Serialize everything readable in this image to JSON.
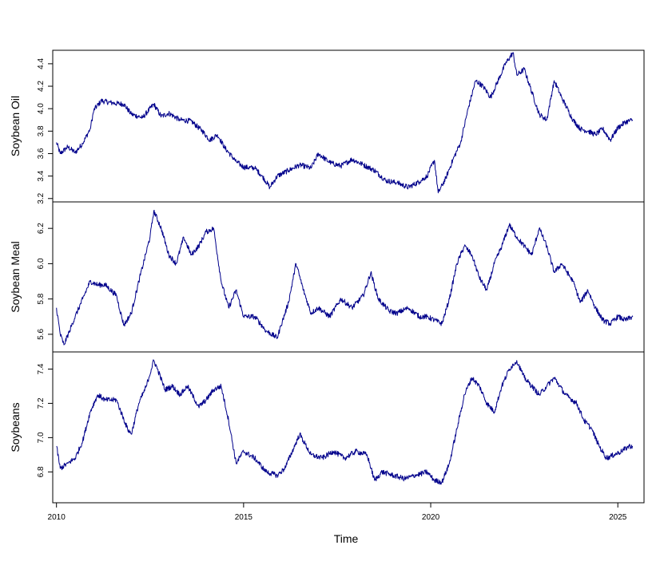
{
  "chart_data": {
    "type": "line",
    "title": "",
    "xlabel": "Time",
    "xlim": [
      2009.9,
      2025.7
    ],
    "x_ticks": [
      2010,
      2015,
      2020,
      2025
    ],
    "x_tick_labels": [
      "2010",
      "2015",
      "2020",
      "2025"
    ],
    "line_color": "#00008B",
    "grid": false,
    "legend": "none",
    "panels": [
      {
        "name": "Soybean Oil",
        "ylim": [
          3.17,
          4.52
        ],
        "y_ticks": [
          3.2,
          3.4,
          3.6,
          3.8,
          4.0,
          4.2,
          4.4
        ],
        "y_tick_labels": [
          "3.2",
          "3.4",
          "3.6",
          "3.8",
          "4.0",
          "4.2",
          "4.4"
        ],
        "x": [
          2010.0,
          2010.1,
          2010.3,
          2010.5,
          2010.7,
          2010.9,
          2011.0,
          2011.2,
          2011.5,
          2011.8,
          2012.0,
          2012.3,
          2012.6,
          2012.8,
          2013.0,
          2013.3,
          2013.6,
          2013.9,
          2014.1,
          2014.3,
          2014.5,
          2014.8,
          2015.0,
          2015.3,
          2015.5,
          2015.7,
          2015.9,
          2016.2,
          2016.5,
          2016.8,
          2017.0,
          2017.3,
          2017.6,
          2017.9,
          2018.2,
          2018.5,
          2018.8,
          2019.1,
          2019.4,
          2019.7,
          2019.9,
          2020.1,
          2020.2,
          2020.4,
          2020.6,
          2020.8,
          2021.0,
          2021.2,
          2021.4,
          2021.6,
          2021.8,
          2022.0,
          2022.2,
          2022.3,
          2022.5,
          2022.7,
          2022.9,
          2023.1,
          2023.3,
          2023.5,
          2023.8,
          2024.0,
          2024.2,
          2024.4,
          2024.6,
          2024.8,
          2025.0,
          2025.2,
          2025.4
        ],
        "y": [
          3.7,
          3.6,
          3.66,
          3.61,
          3.69,
          3.82,
          3.99,
          4.07,
          4.05,
          4.04,
          3.95,
          3.92,
          4.04,
          3.93,
          3.96,
          3.9,
          3.89,
          3.8,
          3.72,
          3.77,
          3.65,
          3.53,
          3.48,
          3.47,
          3.4,
          3.3,
          3.4,
          3.45,
          3.5,
          3.47,
          3.6,
          3.52,
          3.49,
          3.55,
          3.5,
          3.45,
          3.36,
          3.34,
          3.3,
          3.35,
          3.4,
          3.54,
          3.25,
          3.38,
          3.55,
          3.7,
          4.0,
          4.25,
          4.2,
          4.1,
          4.25,
          4.4,
          4.5,
          4.3,
          4.35,
          4.15,
          3.95,
          3.9,
          4.25,
          4.1,
          3.9,
          3.82,
          3.8,
          3.77,
          3.82,
          3.72,
          3.83,
          3.88,
          3.9
        ]
      },
      {
        "name": "Soybean Meal",
        "ylim": [
          5.5,
          6.35
        ],
        "y_ticks": [
          5.6,
          5.8,
          6.0,
          6.2
        ],
        "y_tick_labels": [
          "5.6",
          "5.8",
          "6.0",
          "6.2"
        ],
        "x": [
          2010.0,
          2010.1,
          2010.2,
          2010.35,
          2010.5,
          2010.7,
          2010.9,
          2011.1,
          2011.3,
          2011.6,
          2011.8,
          2012.0,
          2012.2,
          2012.5,
          2012.6,
          2012.8,
          2013.0,
          2013.2,
          2013.4,
          2013.6,
          2013.8,
          2014.0,
          2014.2,
          2014.4,
          2014.6,
          2014.8,
          2015.0,
          2015.3,
          2015.6,
          2015.9,
          2016.0,
          2016.2,
          2016.4,
          2016.6,
          2016.8,
          2017.0,
          2017.3,
          2017.6,
          2017.9,
          2018.2,
          2018.4,
          2018.6,
          2018.9,
          2019.1,
          2019.4,
          2019.7,
          2019.9,
          2020.1,
          2020.3,
          2020.5,
          2020.7,
          2020.9,
          2021.1,
          2021.3,
          2021.5,
          2021.7,
          2021.9,
          2022.1,
          2022.3,
          2022.5,
          2022.7,
          2022.9,
          2023.1,
          2023.3,
          2023.5,
          2023.8,
          2024.0,
          2024.2,
          2024.4,
          2024.6,
          2024.8,
          2025.0,
          2025.2,
          2025.4
        ],
        "y": [
          5.75,
          5.6,
          5.54,
          5.62,
          5.7,
          5.8,
          5.9,
          5.88,
          5.88,
          5.82,
          5.65,
          5.72,
          5.9,
          6.15,
          6.3,
          6.2,
          6.05,
          6.0,
          6.15,
          6.05,
          6.1,
          6.18,
          6.2,
          5.9,
          5.75,
          5.85,
          5.7,
          5.7,
          5.62,
          5.58,
          5.65,
          5.78,
          6.0,
          5.85,
          5.72,
          5.75,
          5.7,
          5.8,
          5.75,
          5.82,
          5.95,
          5.8,
          5.73,
          5.72,
          5.75,
          5.7,
          5.7,
          5.68,
          5.66,
          5.8,
          6.0,
          6.1,
          6.05,
          5.92,
          5.85,
          6.0,
          6.1,
          6.22,
          6.15,
          6.1,
          6.05,
          6.2,
          6.1,
          5.95,
          6.0,
          5.9,
          5.78,
          5.85,
          5.75,
          5.68,
          5.66,
          5.7,
          5.68,
          5.7
        ]
      },
      {
        "name": "Soybeans",
        "ylim": [
          6.62,
          7.5
        ],
        "y_ticks": [
          6.8,
          7.0,
          7.2,
          7.4
        ],
        "y_tick_labels": [
          "6.8",
          "7.0",
          "7.2",
          "7.4"
        ],
        "x": [
          2010.0,
          2010.1,
          2010.3,
          2010.5,
          2010.7,
          2010.9,
          2011.1,
          2011.3,
          2011.6,
          2011.9,
          2012.0,
          2012.2,
          2012.4,
          2012.6,
          2012.7,
          2012.9,
          2013.1,
          2013.3,
          2013.5,
          2013.8,
          2014.0,
          2014.2,
          2014.4,
          2014.6,
          2014.8,
          2015.0,
          2015.3,
          2015.6,
          2015.9,
          2016.1,
          2016.3,
          2016.5,
          2016.8,
          2017.1,
          2017.4,
          2017.7,
          2018.0,
          2018.3,
          2018.5,
          2018.7,
          2019.0,
          2019.3,
          2019.6,
          2019.9,
          2020.1,
          2020.3,
          2020.5,
          2020.7,
          2020.9,
          2021.1,
          2021.3,
          2021.5,
          2021.7,
          2021.9,
          2022.1,
          2022.3,
          2022.5,
          2022.7,
          2022.9,
          2023.1,
          2023.3,
          2023.6,
          2023.9,
          2024.1,
          2024.3,
          2024.5,
          2024.7,
          2024.9,
          2025.1,
          2025.3,
          2025.4
        ],
        "y": [
          6.95,
          6.82,
          6.85,
          6.88,
          6.98,
          7.15,
          7.25,
          7.22,
          7.22,
          7.05,
          7.02,
          7.2,
          7.3,
          7.45,
          7.4,
          7.28,
          7.3,
          7.25,
          7.3,
          7.18,
          7.22,
          7.28,
          7.3,
          7.1,
          6.85,
          6.92,
          6.88,
          6.8,
          6.78,
          6.82,
          6.92,
          7.02,
          6.9,
          6.88,
          6.92,
          6.88,
          6.92,
          6.9,
          6.75,
          6.8,
          6.78,
          6.76,
          6.78,
          6.8,
          6.75,
          6.74,
          6.85,
          7.05,
          7.25,
          7.35,
          7.3,
          7.2,
          7.15,
          7.3,
          7.4,
          7.45,
          7.35,
          7.3,
          7.25,
          7.3,
          7.35,
          7.25,
          7.2,
          7.1,
          7.05,
          6.95,
          6.88,
          6.9,
          6.92,
          6.95,
          6.95
        ]
      }
    ]
  }
}
